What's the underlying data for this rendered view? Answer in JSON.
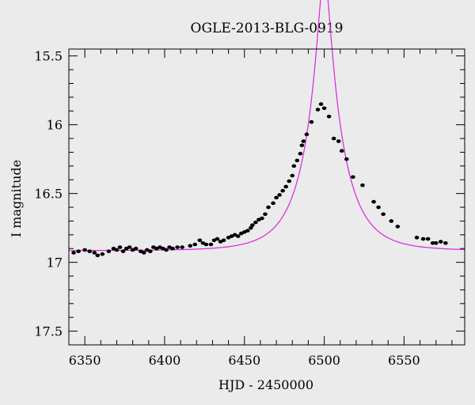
{
  "chart_data": {
    "type": "scatter",
    "title": "OGLE-2013-BLG-0919",
    "xlabel": "HJD - 2450000",
    "ylabel": "I magnitude",
    "xlim": [
      6340,
      6588
    ],
    "ylim": [
      17.6,
      15.45
    ],
    "y_inverted": true,
    "grid": false,
    "x_ticks": [
      6350,
      6400,
      6450,
      6500,
      6550
    ],
    "y_ticks": [
      15.5,
      16,
      16.5,
      17,
      17.5
    ],
    "x_tick_labels": [
      "6350",
      "6400",
      "6450",
      "6500",
      "6550"
    ],
    "y_tick_labels": [
      "15.5",
      "16",
      "16.5",
      "17",
      "17.5"
    ],
    "colors": {
      "background": "#ebebeb",
      "points": "#000000",
      "model": "#dd22dd"
    },
    "model": {
      "t0": 6500,
      "u0": 0.16,
      "tE": 23,
      "baseline": 16.915
    },
    "series": [
      {
        "values": [
          [
            6343,
            16.93
          ],
          [
            6346,
            16.92
          ],
          [
            6350,
            16.91
          ],
          [
            6353,
            16.92
          ],
          [
            6356,
            16.93
          ],
          [
            6358,
            16.95
          ],
          [
            6361,
            16.94
          ],
          [
            6365,
            16.92
          ],
          [
            6368,
            16.9
          ],
          [
            6370,
            16.91
          ],
          [
            6372,
            16.89
          ],
          [
            6374,
            16.92
          ],
          [
            6376,
            16.9
          ],
          [
            6378,
            16.89
          ],
          [
            6380,
            16.91
          ],
          [
            6382,
            16.9
          ],
          [
            6385,
            16.92
          ],
          [
            6387,
            16.93
          ],
          [
            6389,
            16.91
          ],
          [
            6391,
            16.92
          ],
          [
            6393,
            16.89
          ],
          [
            6395,
            16.9
          ],
          [
            6397,
            16.89
          ],
          [
            6399,
            16.9
          ],
          [
            6401,
            16.91
          ],
          [
            6403,
            16.89
          ],
          [
            6405,
            16.9
          ],
          [
            6408,
            16.89
          ],
          [
            6411,
            16.89
          ],
          [
            6416,
            16.88
          ],
          [
            6419,
            16.87
          ],
          [
            6422,
            16.84
          ],
          [
            6424,
            16.86
          ],
          [
            6426,
            16.87
          ],
          [
            6429,
            16.87
          ],
          [
            6431,
            16.84
          ],
          [
            6433,
            16.83
          ],
          [
            6435,
            16.85
          ],
          [
            6437,
            16.84
          ],
          [
            6440,
            16.82
          ],
          [
            6442,
            16.81
          ],
          [
            6444,
            16.8
          ],
          [
            6446,
            16.81
          ],
          [
            6448,
            16.79
          ],
          [
            6450,
            16.78
          ],
          [
            6452,
            16.77
          ],
          [
            6454,
            16.75
          ],
          [
            6455,
            16.73
          ],
          [
            6457,
            16.71
          ],
          [
            6459,
            16.69
          ],
          [
            6461,
            16.68
          ],
          [
            6463,
            16.65
          ],
          [
            6465,
            16.6
          ],
          [
            6468,
            16.57
          ],
          [
            6470,
            16.53
          ],
          [
            6472,
            16.51
          ],
          [
            6474,
            16.48
          ],
          [
            6476,
            16.45
          ],
          [
            6478,
            16.41
          ],
          [
            6480,
            16.37
          ],
          [
            6481,
            16.3
          ],
          [
            6483,
            16.26
          ],
          [
            6485,
            16.21
          ],
          [
            6486,
            16.15
          ],
          [
            6487,
            16.12
          ],
          [
            6489,
            16.07
          ],
          [
            6492,
            15.98
          ],
          [
            6496,
            15.89
          ],
          [
            6498,
            15.85
          ],
          [
            6500,
            15.88
          ],
          [
            6503,
            15.94
          ],
          [
            6506,
            16.1
          ],
          [
            6509,
            16.12
          ],
          [
            6511,
            16.19
          ],
          [
            6514,
            16.25
          ],
          [
            6518,
            16.38
          ],
          [
            6524,
            16.44
          ],
          [
            6531,
            16.56
          ],
          [
            6534,
            16.6
          ],
          [
            6537,
            16.65
          ],
          [
            6542,
            16.7
          ],
          [
            6546,
            16.74
          ],
          [
            6558,
            16.82
          ],
          [
            6562,
            16.83
          ],
          [
            6565,
            16.83
          ],
          [
            6568,
            16.86
          ],
          [
            6570,
            16.86
          ],
          [
            6573,
            16.85
          ],
          [
            6576,
            16.86
          ]
        ]
      }
    ]
  }
}
